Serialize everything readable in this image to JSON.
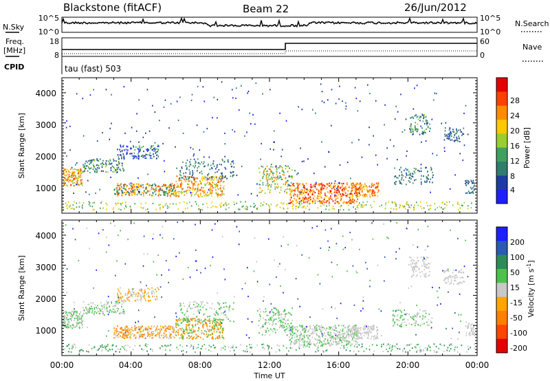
{
  "header": {
    "station": "Blackstone (fitACF)",
    "beam": "Beam 22",
    "date": "26/Jun/2012"
  },
  "left_labels": {
    "nsky": "N.Sky",
    "freq_line1": "Freq.",
    "freq_line2": "[MHz]",
    "cpid": "CPID"
  },
  "right_labels": {
    "nsearch": "N.Search",
    "nave": "Nave"
  },
  "cpid_text": "tau (fast) 503",
  "colors": {
    "axis": "#000000",
    "power_scale": [
      "#1e1eff",
      "#1e3ca0",
      "#2f7d6f",
      "#3fa060",
      "#9acd32",
      "#ffc800",
      "#ff8c00",
      "#ff4000",
      "#e60000"
    ],
    "velocity_scale": [
      "#1e1eff",
      "#2a5ab4",
      "#2e8b57",
      "#4cc24c",
      "#c8c8c8",
      "#ffa500",
      "#ff7f00",
      "#ff4500",
      "#e60000"
    ]
  },
  "chart_data": [
    {
      "type": "line",
      "name": "noise-panel",
      "left_axis": {
        "label": "N.Sky",
        "ticks": [
          "10^5",
          "10^0"
        ]
      },
      "right_axis": {
        "label": "N.Search",
        "ticks": [
          "10^5",
          "10^0"
        ]
      },
      "series": [
        {
          "name": "N.Sky",
          "style": "solid",
          "description_level": "high-steady"
        }
      ]
    },
    {
      "type": "line",
      "name": "freq-nave-panel",
      "left_axis": {
        "label": "Freq. [MHz]",
        "ticks": [
          "18",
          "8"
        ]
      },
      "right_axis": {
        "label": "Nave",
        "ticks": [
          "60",
          "0"
        ]
      },
      "series": [
        {
          "name": "Freq",
          "style": "solid",
          "x": [
            "00:00",
            "13:00",
            "13:00",
            "24:00"
          ],
          "y": [
            11,
            11,
            14.5,
            14.5
          ]
        }
      ]
    },
    {
      "type": "heatmap",
      "name": "power-panel",
      "xlabel": "",
      "ylabel": "Slant Range [km]",
      "yticks": [
        "1000",
        "2000",
        "3000",
        "4000"
      ],
      "colorbar": {
        "label": "Power [dB]",
        "ticks": [
          "4",
          "8",
          "12",
          "16",
          "20",
          "24",
          "28"
        ],
        "range": [
          0,
          30
        ]
      }
    },
    {
      "type": "heatmap",
      "name": "velocity-panel",
      "xlabel": "Time UT",
      "ylabel": "Slant Range [km]",
      "xticks": [
        "00:00",
        "04:00",
        "08:00",
        "12:00",
        "16:00",
        "20:00",
        "00:00"
      ],
      "yticks": [
        "1000",
        "2000",
        "3000",
        "4000"
      ],
      "colorbar": {
        "label": "Velocity [m s-1]",
        "ticks": [
          "200",
          "100",
          "50",
          "15",
          "-15",
          "-50",
          "-100",
          "-200"
        ]
      }
    }
  ],
  "axis_titles": {
    "xlabel": "Time UT",
    "ylabel_top": "Slant Range [km]",
    "ylabel_bottom": "Slant Range [km]",
    "power_label": "Power [dB]",
    "velocity_label": "Velocity [m s",
    "velocity_unit_sup": "-1",
    "velocity_label_end": "]"
  },
  "xticks": [
    "00:00",
    "04:00",
    "08:00",
    "12:00",
    "16:00",
    "20:00",
    "00:00"
  ],
  "yticks_range": [
    "1000",
    "2000",
    "3000",
    "4000"
  ],
  "noise_ticks": {
    "left_top": "10^5",
    "left_bottom": "10^0",
    "right_top": "10^5",
    "right_bottom": "10^0"
  },
  "freq_ticks": {
    "left_top": "18",
    "left_bottom": "8",
    "right_top": "60",
    "right_bottom": "0"
  },
  "power_ticks": [
    "4",
    "8",
    "12",
    "16",
    "20",
    "24",
    "28"
  ],
  "velocity_ticks": [
    "200",
    "100",
    "50",
    "15",
    "-15",
    "-50",
    "-100",
    "-200"
  ]
}
